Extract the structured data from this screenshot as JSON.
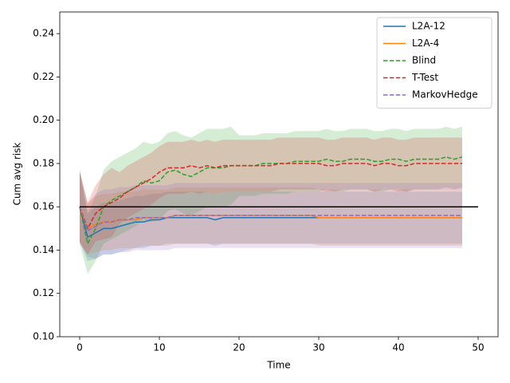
{
  "chart_data": {
    "type": "line",
    "xlabel": "Time",
    "ylabel": "Cum avg risk",
    "xlim": [
      -2.5,
      52.5
    ],
    "ylim": [
      0.1,
      0.25
    ],
    "xticks": [
      0,
      10,
      20,
      30,
      40,
      50
    ],
    "yticks": [
      {
        "value": 0.1,
        "label": "0.10"
      },
      0.12,
      0.14,
      0.16,
      0.18,
      {
        "value": 0.2,
        "label": "0.20"
      },
      0.22,
      0.24
    ],
    "legend": "upper right",
    "hline": {
      "y": 0.16,
      "xmin": 0,
      "xmax": 50,
      "color": "#000000"
    },
    "x": [
      0,
      1,
      2,
      3,
      4,
      5,
      6,
      7,
      8,
      9,
      10,
      11,
      12,
      13,
      14,
      15,
      16,
      17,
      18,
      19,
      20,
      21,
      22,
      23,
      24,
      25,
      26,
      27,
      28,
      29,
      30,
      31,
      32,
      33,
      34,
      35,
      36,
      37,
      38,
      39,
      40,
      41,
      42,
      43,
      44,
      45,
      46,
      47,
      48
    ],
    "series": [
      {
        "name": "L2A-12",
        "color": "#1f77b4",
        "linestyle": "solid",
        "values": [
          0.16,
          0.146,
          0.148,
          0.15,
          0.15,
          0.151,
          0.152,
          0.153,
          0.153,
          0.154,
          0.154,
          0.155,
          0.155,
          0.155,
          0.155,
          0.155,
          0.155,
          0.154,
          0.155,
          0.155,
          0.155,
          0.155,
          0.155,
          0.155,
          0.155,
          0.155,
          0.155,
          0.155,
          0.155,
          0.155,
          0.155,
          0.155,
          0.155,
          0.155,
          0.155,
          0.155,
          0.155,
          0.155,
          0.155,
          0.155,
          0.155,
          0.155,
          0.155,
          0.155,
          0.155,
          0.155,
          0.155,
          0.155,
          0.155
        ],
        "spread": [
          0.016,
          0.011,
          0.012,
          0.012,
          0.012,
          0.012,
          0.012,
          0.012,
          0.012,
          0.012,
          0.012,
          0.012,
          0.012,
          0.012,
          0.012,
          0.012,
          0.012,
          0.012,
          0.012,
          0.012,
          0.012,
          0.012,
          0.012,
          0.012,
          0.012,
          0.012,
          0.012,
          0.012,
          0.012,
          0.012,
          0.012,
          0.012,
          0.012,
          0.012,
          0.012,
          0.012,
          0.012,
          0.012,
          0.012,
          0.012,
          0.012,
          0.012,
          0.012,
          0.012,
          0.012,
          0.012,
          0.012,
          0.012,
          0.012
        ]
      },
      {
        "name": "L2A-4",
        "color": "#ff7f0e",
        "linestyle": "solid",
        "values": [
          0.16,
          0.15,
          0.152,
          0.153,
          0.153,
          0.154,
          0.154,
          0.154,
          0.155,
          0.155,
          0.155,
          0.155,
          0.156,
          0.156,
          0.156,
          0.156,
          0.156,
          0.156,
          0.156,
          0.156,
          0.156,
          0.156,
          0.156,
          0.156,
          0.156,
          0.156,
          0.156,
          0.156,
          0.156,
          0.156,
          0.155,
          0.155,
          0.155,
          0.155,
          0.155,
          0.155,
          0.155,
          0.155,
          0.155,
          0.155,
          0.155,
          0.155,
          0.155,
          0.155,
          0.155,
          0.155,
          0.155,
          0.155,
          0.155
        ],
        "spread": [
          0.016,
          0.012,
          0.013,
          0.013,
          0.013,
          0.013,
          0.013,
          0.013,
          0.013,
          0.013,
          0.013,
          0.013,
          0.013,
          0.013,
          0.013,
          0.013,
          0.013,
          0.013,
          0.013,
          0.013,
          0.013,
          0.013,
          0.013,
          0.013,
          0.013,
          0.013,
          0.013,
          0.013,
          0.013,
          0.013,
          0.013,
          0.013,
          0.013,
          0.013,
          0.013,
          0.013,
          0.013,
          0.013,
          0.013,
          0.013,
          0.013,
          0.013,
          0.013,
          0.013,
          0.013,
          0.013,
          0.013,
          0.013,
          0.013
        ]
      },
      {
        "name": "Blind",
        "color": "#2ca02c",
        "linestyle": "dashed",
        "values": [
          0.16,
          0.143,
          0.15,
          0.16,
          0.163,
          0.165,
          0.167,
          0.169,
          0.172,
          0.171,
          0.172,
          0.176,
          0.177,
          0.175,
          0.174,
          0.176,
          0.178,
          0.178,
          0.178,
          0.179,
          0.179,
          0.179,
          0.179,
          0.18,
          0.18,
          0.18,
          0.18,
          0.181,
          0.181,
          0.181,
          0.181,
          0.182,
          0.181,
          0.181,
          0.182,
          0.182,
          0.182,
          0.181,
          0.181,
          0.182,
          0.182,
          0.181,
          0.182,
          0.182,
          0.182,
          0.182,
          0.183,
          0.182,
          0.183
        ],
        "spread": [
          0.017,
          0.014,
          0.015,
          0.017,
          0.018,
          0.018,
          0.018,
          0.018,
          0.018,
          0.018,
          0.018,
          0.018,
          0.018,
          0.018,
          0.018,
          0.018,
          0.018,
          0.018,
          0.018,
          0.018,
          0.014,
          0.014,
          0.014,
          0.014,
          0.014,
          0.014,
          0.014,
          0.014,
          0.014,
          0.014,
          0.014,
          0.014,
          0.014,
          0.014,
          0.014,
          0.014,
          0.014,
          0.014,
          0.014,
          0.014,
          0.014,
          0.014,
          0.014,
          0.014,
          0.014,
          0.014,
          0.014,
          0.014,
          0.014
        ]
      },
      {
        "name": "T-Test",
        "color": "#d62728",
        "linestyle": "dashed",
        "values": [
          0.16,
          0.15,
          0.157,
          0.16,
          0.162,
          0.164,
          0.167,
          0.169,
          0.171,
          0.173,
          0.176,
          0.178,
          0.178,
          0.178,
          0.179,
          0.178,
          0.179,
          0.178,
          0.179,
          0.179,
          0.179,
          0.179,
          0.179,
          0.179,
          0.179,
          0.18,
          0.18,
          0.18,
          0.18,
          0.18,
          0.18,
          0.179,
          0.179,
          0.18,
          0.18,
          0.18,
          0.18,
          0.179,
          0.18,
          0.18,
          0.179,
          0.179,
          0.18,
          0.18,
          0.18,
          0.18,
          0.18,
          0.18,
          0.18
        ],
        "spread": [
          0.017,
          0.012,
          0.013,
          0.015,
          0.016,
          0.012,
          0.012,
          0.012,
          0.012,
          0.012,
          0.012,
          0.012,
          0.012,
          0.012,
          0.012,
          0.012,
          0.012,
          0.012,
          0.012,
          0.012,
          0.012,
          0.012,
          0.012,
          0.012,
          0.012,
          0.012,
          0.012,
          0.012,
          0.012,
          0.012,
          0.012,
          0.012,
          0.012,
          0.012,
          0.012,
          0.012,
          0.012,
          0.012,
          0.012,
          0.012,
          0.012,
          0.012,
          0.012,
          0.012,
          0.012,
          0.012,
          0.012,
          0.012,
          0.012
        ]
      },
      {
        "name": "MarkovHedge",
        "color": "#9467bd",
        "linestyle": "dashed",
        "values": [
          0.16,
          0.149,
          0.151,
          0.153,
          0.153,
          0.154,
          0.154,
          0.155,
          0.155,
          0.155,
          0.155,
          0.155,
          0.156,
          0.156,
          0.156,
          0.156,
          0.156,
          0.156,
          0.156,
          0.156,
          0.156,
          0.156,
          0.156,
          0.156,
          0.156,
          0.156,
          0.156,
          0.156,
          0.156,
          0.156,
          0.156,
          0.156,
          0.156,
          0.156,
          0.156,
          0.156,
          0.156,
          0.156,
          0.156,
          0.156,
          0.156,
          0.156,
          0.156,
          0.156,
          0.156,
          0.156,
          0.156,
          0.156,
          0.156
        ],
        "spread": [
          0.016,
          0.012,
          0.015,
          0.015,
          0.015,
          0.015,
          0.015,
          0.015,
          0.015,
          0.015,
          0.015,
          0.015,
          0.015,
          0.015,
          0.015,
          0.015,
          0.015,
          0.015,
          0.015,
          0.015,
          0.015,
          0.015,
          0.015,
          0.015,
          0.015,
          0.015,
          0.015,
          0.015,
          0.015,
          0.015,
          0.015,
          0.015,
          0.015,
          0.015,
          0.015,
          0.015,
          0.015,
          0.015,
          0.015,
          0.015,
          0.015,
          0.015,
          0.015,
          0.015,
          0.015,
          0.015,
          0.015,
          0.015,
          0.015
        ]
      }
    ]
  }
}
